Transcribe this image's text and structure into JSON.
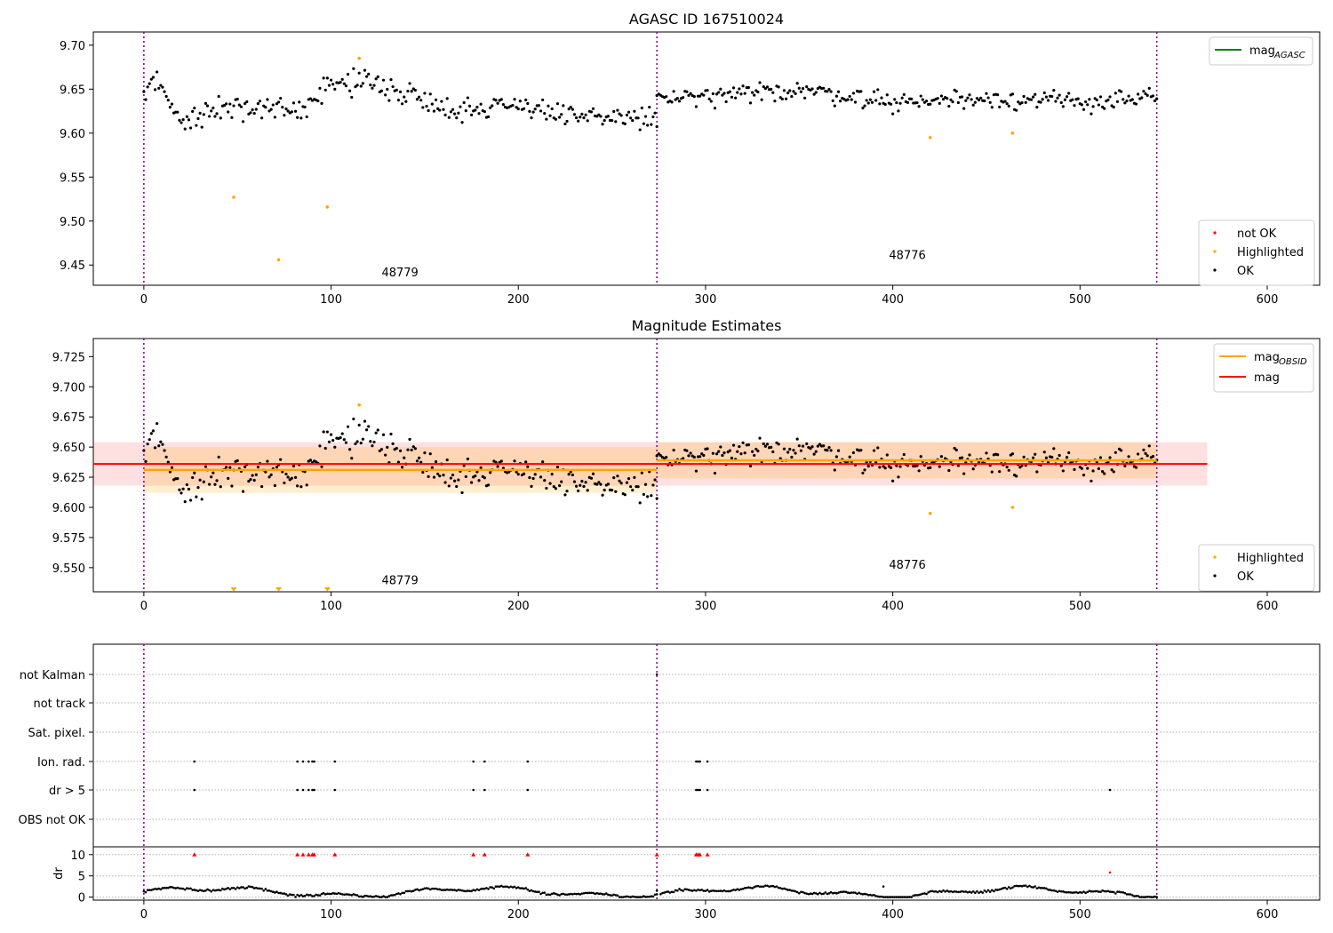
{
  "chart_data": [
    {
      "type": "scatter",
      "title": "AGASC ID 167510024",
      "xlim": [
        -27,
        628
      ],
      "ylim": [
        9.427,
        9.715
      ],
      "xticks": [
        0,
        100,
        200,
        300,
        400,
        500,
        600
      ],
      "yticks": [
        9.45,
        9.5,
        9.55,
        9.6,
        9.65,
        9.7
      ],
      "ytick_labels": [
        "9.45",
        "9.50",
        "9.55",
        "9.60",
        "9.65",
        "9.70"
      ],
      "obs_boundaries": [
        0,
        274,
        541
      ],
      "obs_labels": [
        {
          "text": "48779",
          "x": 127,
          "y": 9.442
        },
        {
          "text": "48776",
          "x": 398,
          "y": 9.462
        }
      ],
      "legend_lines": [
        {
          "name": "mag",
          "sub": "AGASC",
          "color": "#008000"
        }
      ],
      "legend_points": [
        {
          "name": "not OK",
          "color": "#ff0000"
        },
        {
          "name": "Highlighted",
          "color": "#ffa500"
        },
        {
          "name": "OK",
          "color": "#000000"
        }
      ],
      "highlighted_points": [
        [
          48,
          9.527
        ],
        [
          72,
          9.456
        ],
        [
          98,
          9.516
        ],
        [
          115,
          9.685
        ],
        [
          420,
          9.595
        ],
        [
          464,
          9.6
        ]
      ],
      "ok_series": {
        "description_values": "dense black points: magnitude ~9.58-9.68",
        "segments": [
          {
            "x": [
              0,
              274
            ],
            "mean": 9.628,
            "spread": 0.022,
            "anchors": [
              [
                0,
                9.64
              ],
              [
                5,
                9.67
              ],
              [
                20,
                9.61
              ],
              [
                40,
                9.63
              ],
              [
                60,
                9.625
              ],
              [
                80,
                9.625
              ],
              [
                100,
                9.655
              ],
              [
                120,
                9.66
              ],
              [
                140,
                9.645
              ],
              [
                170,
                9.625
              ],
              [
                200,
                9.635
              ],
              [
                230,
                9.615
              ],
              [
                250,
                9.62
              ],
              [
                274,
                9.615
              ]
            ]
          },
          {
            "x": [
              274,
              541
            ],
            "mean": 9.638,
            "spread": 0.018,
            "anchors": [
              [
                274,
                9.64
              ],
              [
                300,
                9.64
              ],
              [
                350,
                9.65
              ],
              [
                400,
                9.635
              ],
              [
                450,
                9.64
              ],
              [
                500,
                9.635
              ],
              [
                541,
                9.64
              ]
            ]
          }
        ]
      }
    },
    {
      "type": "scatter",
      "title": "Magnitude Estimates",
      "xlim": [
        -27,
        628
      ],
      "ylim": [
        9.53,
        9.74
      ],
      "xticks": [
        0,
        100,
        200,
        300,
        400,
        500,
        600
      ],
      "yticks": [
        9.55,
        9.575,
        9.6,
        9.625,
        9.65,
        9.675,
        9.7,
        9.725
      ],
      "ytick_labels": [
        "9.550",
        "9.575",
        "9.600",
        "9.625",
        "9.650",
        "9.675",
        "9.700",
        "9.725"
      ],
      "obs_boundaries": [
        0,
        274,
        541
      ],
      "obs_labels": [
        {
          "text": "48779",
          "x": 127,
          "y": 9.54
        },
        {
          "text": "48776",
          "x": 398,
          "y": 9.553
        }
      ],
      "mag_obsid": [
        {
          "x": [
            0,
            274
          ],
          "value": 9.631,
          "band": [
            9.612,
            9.65
          ]
        },
        {
          "x": [
            274,
            541
          ],
          "value": 9.639,
          "band": [
            9.624,
            9.654
          ]
        }
      ],
      "mag": {
        "x": [
          -27,
          568
        ],
        "value": 9.636,
        "band": [
          9.618,
          9.654
        ]
      },
      "legend_lines": [
        {
          "name": "mag",
          "sub": "OBSID",
          "color": "#ffa500"
        },
        {
          "name": "mag",
          "sub": "",
          "color": "#ff0000"
        }
      ],
      "legend_points": [
        {
          "name": "Highlighted",
          "color": "#ffa500"
        },
        {
          "name": "OK",
          "color": "#000000"
        }
      ],
      "highlighted_points": [
        [
          115,
          9.685
        ],
        [
          420,
          9.595
        ],
        [
          464,
          9.6
        ]
      ],
      "offscale_markers_x": [
        48,
        72,
        98
      ]
    },
    {
      "type": "scatter",
      "title": "",
      "xlim": [
        -27,
        628
      ],
      "xticks": [
        0,
        100,
        200,
        300,
        400,
        500,
        600
      ],
      "obs_boundaries": [
        0,
        274,
        541
      ],
      "flag_rows": [
        "not Kalman",
        "not track",
        "Sat. pixel.",
        "Ion. rad.",
        "dr > 5",
        "OBS not OK"
      ],
      "flag_points": {
        "not Kalman": [
          274
        ],
        "not track": [],
        "Sat. pixel.": [],
        "Ion. rad.": [
          27,
          82,
          85,
          88,
          90,
          91,
          102,
          176,
          182,
          205,
          295,
          296,
          297,
          301
        ],
        "dr > 5": [
          27,
          82,
          85,
          88,
          90,
          91,
          102,
          176,
          182,
          205,
          295,
          296,
          297,
          301,
          516
        ],
        "OBS not OK": []
      },
      "dr": {
        "ylabel": "dr",
        "ylim": [
          -0.5,
          11
        ],
        "yticks": [
          0,
          5,
          10
        ],
        "capped_value": 10,
        "capped_red_x": [
          27,
          82,
          85,
          88,
          90,
          91,
          102,
          176,
          182,
          205,
          274,
          295,
          296,
          297,
          301
        ],
        "red_points": [
          [
            516,
            5.8
          ]
        ],
        "outlier_points": [
          [
            395,
            2.5
          ],
          [
            274,
            1.5
          ]
        ]
      }
    }
  ]
}
